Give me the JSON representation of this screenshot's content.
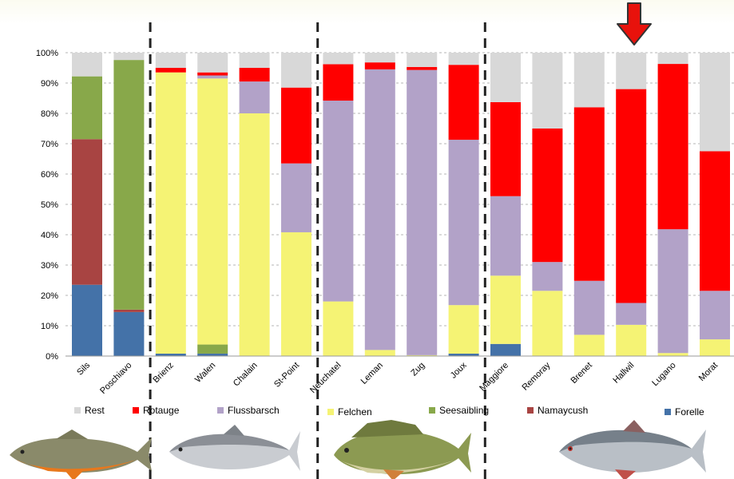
{
  "chart_data": {
    "type": "bar",
    "stacked": true,
    "normalized": true,
    "categories": [
      "Sils",
      "Poschiavo",
      "Brienz",
      "Walen",
      "Chalain",
      "St-Point",
      "Neuchatel",
      "Leman",
      "Zug",
      "Joux",
      "Maggiore",
      "Remoray",
      "Brenet",
      "Hallwil",
      "Lugano",
      "Morat"
    ],
    "series": [
      {
        "name": "Forelle",
        "color": "#4472a8",
        "values": [
          23.5,
          14.5,
          0.8,
          0.8,
          0,
          0,
          0,
          0,
          0,
          0.8,
          4,
          0,
          0,
          0,
          0,
          0
        ]
      },
      {
        "name": "Namaycush",
        "color": "#a84442",
        "values": [
          48,
          0.8,
          0,
          0,
          0,
          0,
          0,
          0,
          0,
          0,
          0,
          0,
          0,
          0,
          0,
          0
        ]
      },
      {
        "name": "Seesaibling",
        "color": "#88a84a",
        "values": [
          20.7,
          82.3,
          0,
          3,
          0,
          0,
          0,
          0,
          0,
          0,
          0,
          0,
          0,
          0,
          0,
          0
        ]
      },
      {
        "name": "Felchen",
        "color": "#f5f374",
        "values": [
          0,
          0,
          92.7,
          87.7,
          80,
          40.8,
          18,
          2,
          0.3,
          16,
          22.5,
          21.5,
          7,
          10.3,
          1,
          5.5
        ]
      },
      {
        "name": "Flussbarsch",
        "color": "#b2a2c8",
        "values": [
          0,
          0,
          0,
          1,
          10.5,
          22.7,
          66.2,
          92.5,
          94,
          54.5,
          26.2,
          9.5,
          17.8,
          7.2,
          40.8,
          16
        ]
      },
      {
        "name": "Rotauge",
        "color": "#ff0000",
        "values": [
          0,
          0,
          1.5,
          1,
          4.5,
          25,
          12,
          2.3,
          1,
          24.7,
          31,
          44,
          57.2,
          70.5,
          54.5,
          46
        ]
      },
      {
        "name": "Rest",
        "color": "#d8d8d8",
        "values": [
          7.8,
          2.4,
          5,
          6.5,
          5,
          11.5,
          3.8,
          3.2,
          4.7,
          4,
          16.3,
          25,
          18,
          12,
          3.7,
          32.5
        ]
      }
    ],
    "legend": [
      "Rest",
      "Rotauge",
      "Flussbarsch",
      "Felchen",
      "Seesaibling",
      "Namaycush",
      "Forelle"
    ],
    "yticks": [
      "0%",
      "10%",
      "20%",
      "30%",
      "40%",
      "50%",
      "60%",
      "70%",
      "80%",
      "90%",
      "100%"
    ],
    "ylim": [
      0,
      100
    ],
    "grid": true,
    "group_separators_after": [
      "Poschiavo",
      "St-Point",
      "Joux"
    ],
    "highlighted_category": "Hallwil",
    "legend_position": "bottom"
  },
  "colors": {
    "arrow": "#e8120c",
    "grid": "#b5b5b5",
    "separator": "#222222"
  },
  "decorations": {
    "fish_images": [
      "char-fish-icon",
      "whitefish-icon",
      "perch-fish-icon",
      "roach-fish-icon"
    ],
    "arrow_icon": "red-down-arrow-icon"
  }
}
